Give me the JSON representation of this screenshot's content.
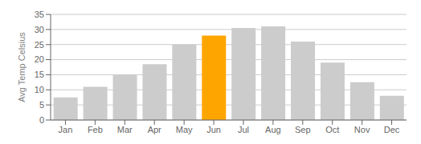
{
  "chart_data": {
    "type": "bar",
    "categories": [
      "Jan",
      "Feb",
      "Mar",
      "Apr",
      "May",
      "Jun",
      "Jul",
      "Aug",
      "Sep",
      "Oct",
      "Nov",
      "Dec"
    ],
    "values": [
      7.5,
      11,
      15,
      18.5,
      25,
      28,
      30.5,
      31,
      26,
      19,
      12.5,
      8
    ],
    "colors": [
      "#cccccc",
      "#cccccc",
      "#cccccc",
      "#cccccc",
      "#cccccc",
      "#FFA500",
      "#cccccc",
      "#cccccc",
      "#cccccc",
      "#cccccc",
      "#cccccc",
      "#cccccc"
    ],
    "ylabel": "Avg Temp Celsius",
    "ylim": [
      0,
      35
    ],
    "yticks": [
      0,
      5,
      10,
      15,
      20,
      25,
      30,
      35
    ],
    "grid": true
  }
}
